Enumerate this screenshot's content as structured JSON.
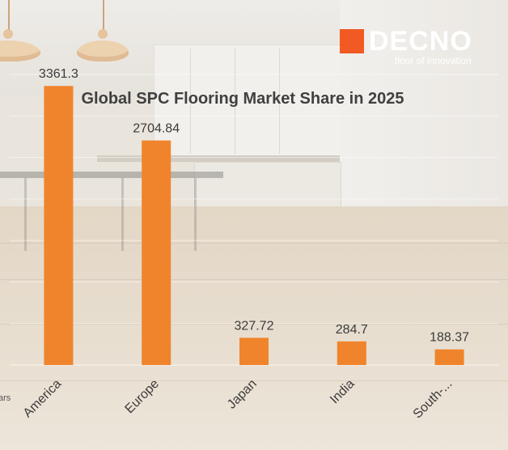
{
  "brand": {
    "name": "DECNO",
    "tagline": "floor of innovation",
    "accent_color": "#f15a22"
  },
  "chart_data": {
    "type": "bar",
    "title": "Global SPC Flooring Market Share in 2025",
    "categories": [
      "America",
      "Europe",
      "Japan",
      "India",
      "South-..."
    ],
    "values": [
      3361.3,
      2704.84,
      327.72,
      284.7,
      188.37
    ],
    "data_labels": [
      "3361.3",
      "2704.84",
      "327.72",
      "284.7",
      "188.37"
    ],
    "bar_color": "#f0842c",
    "ylim": [
      0,
      3500
    ],
    "grid": true,
    "edge_fragment": "ars"
  }
}
